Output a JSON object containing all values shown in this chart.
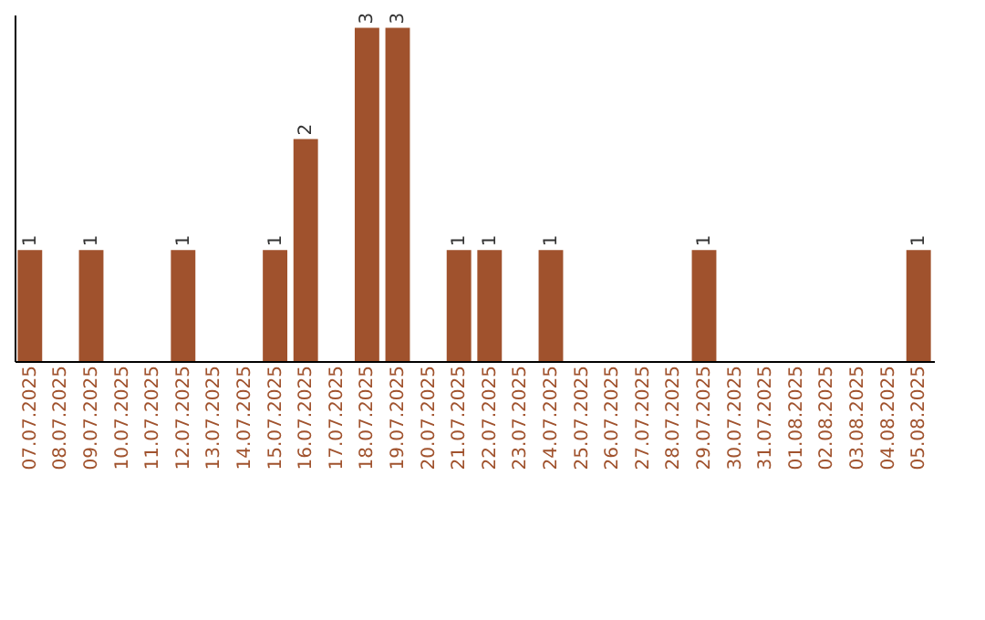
{
  "chart_data": {
    "type": "bar",
    "categories": [
      "07.07.2025",
      "08.07.2025",
      "09.07.2025",
      "10.07.2025",
      "11.07.2025",
      "12.07.2025",
      "13.07.2025",
      "14.07.2025",
      "15.07.2025",
      "16.07.2025",
      "17.07.2025",
      "18.07.2025",
      "19.07.2025",
      "20.07.2025",
      "21.07.2025",
      "22.07.2025",
      "23.07.2025",
      "24.07.2025",
      "25.07.2025",
      "26.07.2025",
      "27.07.2025",
      "28.07.2025",
      "29.07.2025",
      "30.07.2025",
      "31.07.2025",
      "01.08.2025",
      "02.08.2025",
      "03.08.2025",
      "04.08.2025",
      "05.08.2025"
    ],
    "values": [
      1,
      0,
      1,
      0,
      0,
      1,
      0,
      0,
      1,
      2,
      0,
      3,
      3,
      0,
      1,
      1,
      0,
      1,
      0,
      0,
      0,
      0,
      1,
      0,
      0,
      0,
      0,
      0,
      0,
      1
    ],
    "value_labels": [
      "1",
      null,
      "1",
      null,
      null,
      "1",
      null,
      null,
      "1",
      "2",
      null,
      "3",
      "3",
      null,
      "1",
      "1",
      null,
      "1",
      null,
      null,
      null,
      null,
      "1",
      null,
      null,
      null,
      null,
      null,
      null,
      "1"
    ],
    "color": "#a0522d",
    "ylim": [
      0,
      3.12
    ],
    "tick_labels": "x",
    "grid": false
  }
}
